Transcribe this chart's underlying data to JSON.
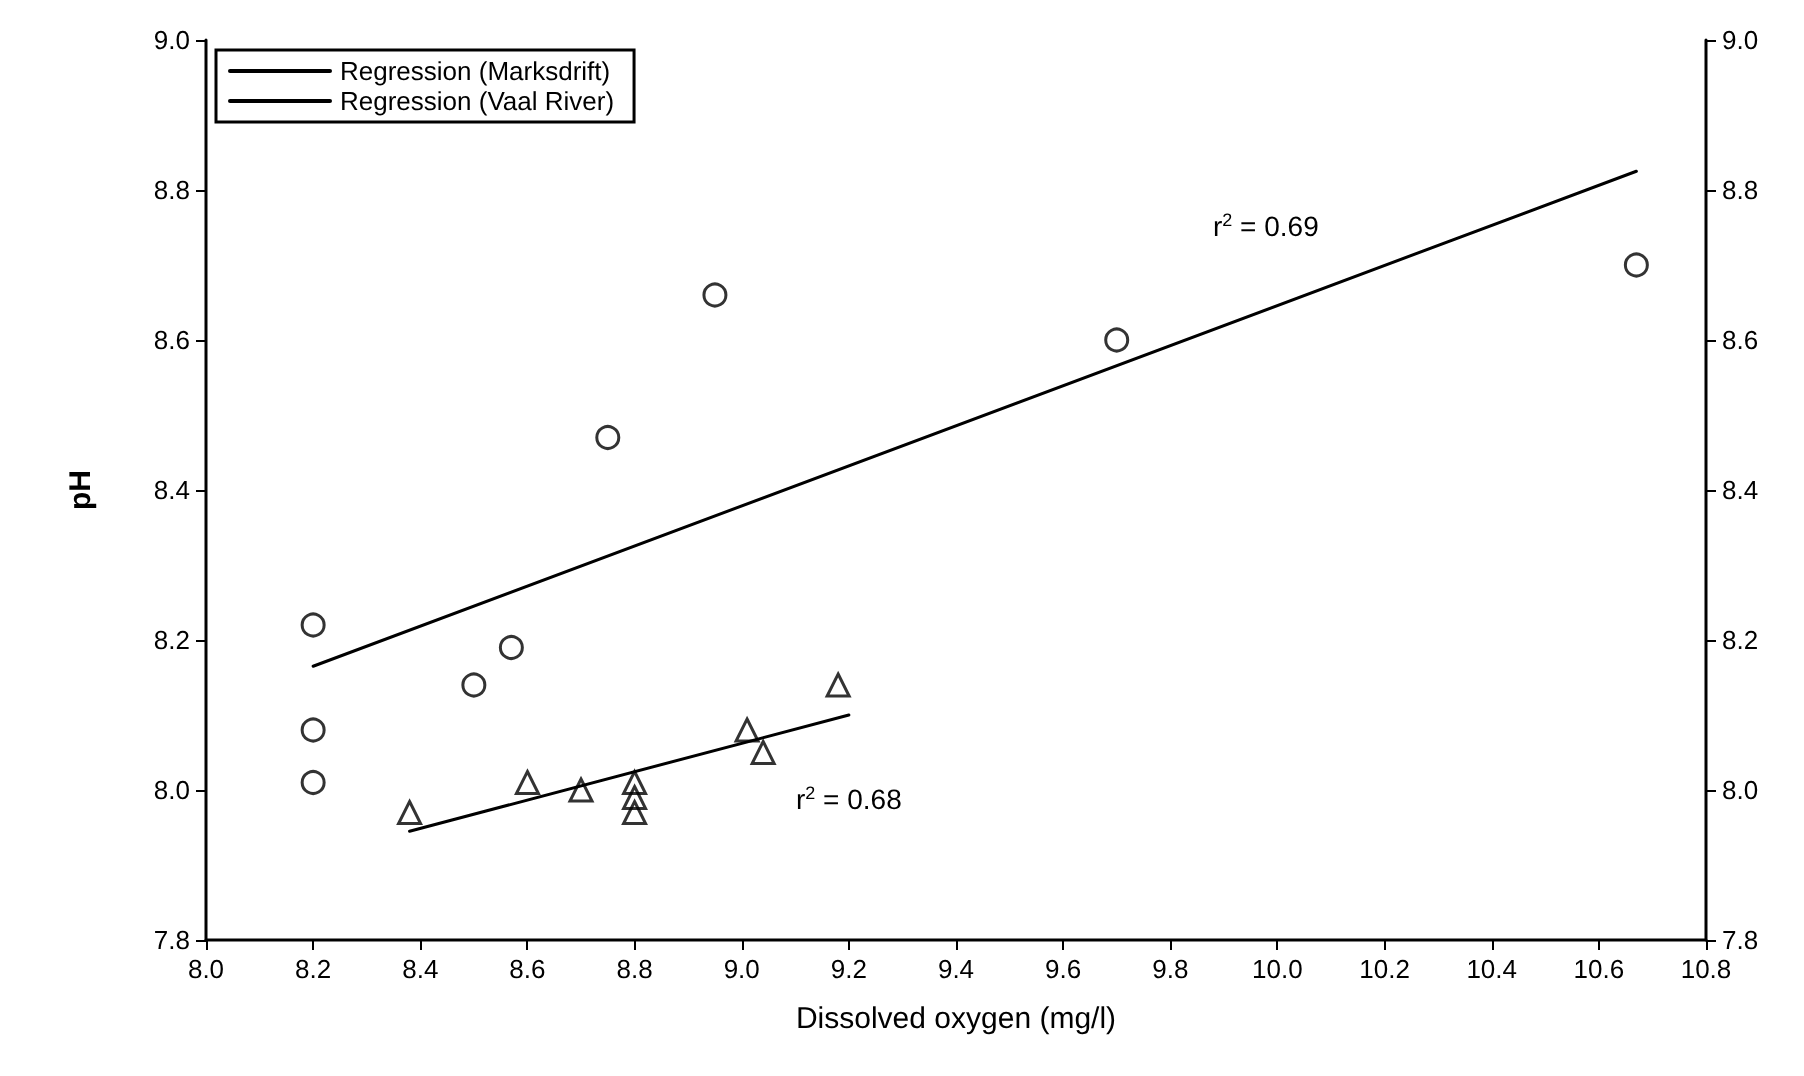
{
  "chart_data": {
    "type": "scatter",
    "xlabel": "Dissolved oxygen (mg/l)",
    "ylabel": "pH",
    "series": [
      {
        "type": "scatter",
        "marker": "circle",
        "color": "#000000",
        "x": [
          8.2,
          8.2,
          8.2,
          8.5,
          8.57,
          8.75,
          8.95,
          9.7,
          10.67
        ],
        "values": [
          8.22,
          8.08,
          8.01,
          8.14,
          8.19,
          8.47,
          8.66,
          8.6,
          8.7
        ]
      },
      {
        "type": "scatter",
        "marker": "triangle",
        "color": "#000000",
        "x": [
          8.38,
          8.6,
          8.7,
          8.8,
          8.8,
          8.8,
          9.01,
          9.04,
          9.18
        ],
        "values": [
          7.97,
          8.01,
          8.0,
          8.01,
          7.99,
          7.97,
          8.08,
          8.05,
          8.14
        ]
      },
      {
        "type": "line",
        "name": "Regression (Marksdrift)",
        "marker": "none",
        "color": "#000000",
        "x": [
          8.2,
          10.67
        ],
        "values": [
          8.165,
          8.825
        ]
      },
      {
        "type": "line",
        "name": "Regression (Vaal River)",
        "marker": "none",
        "color": "#000000",
        "x": [
          8.38,
          9.2
        ],
        "values": [
          7.945,
          8.1
        ]
      }
    ],
    "xlim": [
      8.0,
      10.8
    ],
    "xticks": [
      {
        "value": 8.0,
        "label": "8.0"
      },
      {
        "value": 8.2,
        "label": "8.2"
      },
      {
        "value": 8.4,
        "label": "8.4"
      },
      {
        "value": 8.6,
        "label": "8.6"
      },
      {
        "value": 8.8,
        "label": "8.8"
      },
      {
        "value": 9.0,
        "label": "9.0"
      },
      {
        "value": 9.2,
        "label": "9.2"
      },
      {
        "value": 9.4,
        "label": "9.4"
      },
      {
        "value": 9.6,
        "label": "9.6"
      },
      {
        "value": 9.8,
        "label": "9.8"
      },
      {
        "value": 10.0,
        "label": "10.0"
      },
      {
        "value": 10.2,
        "label": "10.2"
      },
      {
        "value": 10.4,
        "label": "10.4"
      },
      {
        "value": 10.6,
        "label": "10.6"
      },
      {
        "value": 10.8,
        "label": "10.8"
      }
    ],
    "ylim": [
      7.8,
      9.0
    ],
    "yticks": [
      {
        "value": 7.8,
        "label": "7.8"
      },
      {
        "value": 8.0,
        "label": "8.0"
      },
      {
        "value": 8.2,
        "label": "8.2"
      },
      {
        "value": 8.4,
        "label": "8.4"
      },
      {
        "value": 8.6,
        "label": "8.6"
      },
      {
        "value": 8.8,
        "label": "8.8"
      },
      {
        "value": 9.0,
        "label": "9.0"
      }
    ],
    "y2lim": [
      7.8,
      9.0
    ],
    "y2ticks": [
      {
        "value": 7.8,
        "label": "7.8"
      },
      {
        "value": 8.0,
        "label": "8.0"
      },
      {
        "value": 8.2,
        "label": "8.2"
      },
      {
        "value": 8.4,
        "label": "8.4"
      },
      {
        "value": 8.6,
        "label": "8.6"
      },
      {
        "value": 8.8,
        "label": "8.8"
      },
      {
        "value": 9.0,
        "label": "9.0"
      }
    ],
    "annotations": [
      "r$^{2}$ = 0.69",
      "r$^{2}$ = 0.68"
    ],
    "legend": "top left",
    "grid": false,
    "line_style": "solid"
  }
}
